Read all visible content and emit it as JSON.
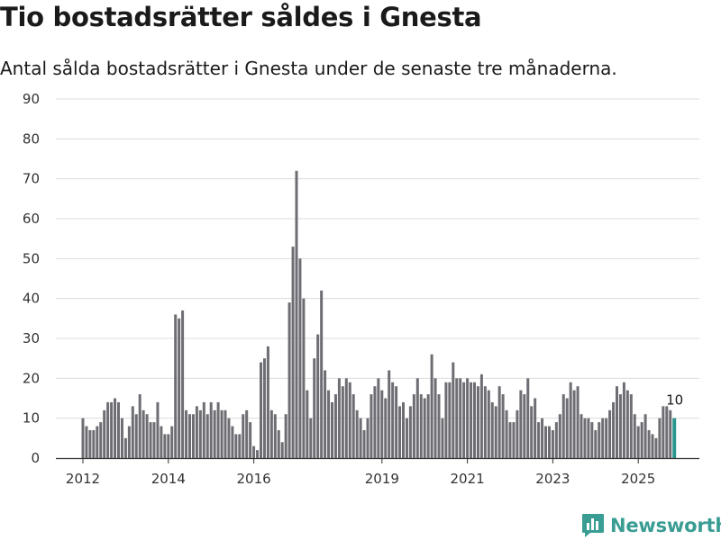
{
  "chart_data": {
    "type": "bar",
    "title": "Tio bostadsrätter såldes i Gnesta",
    "subtitle": "Antal sålda bostadsrätter i Gnesta under de senaste tre månaderna.",
    "xlabel": "",
    "ylabel": "",
    "ylim": [
      0,
      90
    ],
    "yticks": [
      0,
      10,
      20,
      30,
      40,
      50,
      60,
      70,
      80,
      90
    ],
    "xtick_labels": [
      {
        "label": "2012",
        "index": 0
      },
      {
        "label": "2014",
        "index": 24
      },
      {
        "label": "2016",
        "index": 48
      },
      {
        "label": "2019",
        "index": 84
      },
      {
        "label": "2021",
        "index": 108
      },
      {
        "label": "2023",
        "index": 132
      },
      {
        "label": "2025",
        "index": 156
      }
    ],
    "colors": {
      "bar": "#6e6d73",
      "highlight": "#2a958d",
      "grid": "#dcdcdc",
      "axis": "#333333"
    },
    "values": [
      10,
      8,
      7,
      7,
      8,
      9,
      12,
      14,
      14,
      15,
      14,
      10,
      5,
      8,
      13,
      11,
      16,
      12,
      11,
      9,
      9,
      14,
      8,
      6,
      6,
      8,
      36,
      35,
      37,
      12,
      11,
      11,
      13,
      12,
      14,
      11,
      14,
      12,
      14,
      12,
      12,
      10,
      8,
      6,
      6,
      11,
      12,
      9,
      3,
      2,
      24,
      25,
      28,
      12,
      11,
      7,
      4,
      11,
      39,
      53,
      72,
      50,
      40,
      17,
      10,
      25,
      31,
      42,
      22,
      17,
      14,
      16,
      20,
      18,
      20,
      19,
      16,
      12,
      10,
      7,
      10,
      16,
      18,
      20,
      17,
      15,
      22,
      19,
      18,
      13,
      14,
      10,
      13,
      16,
      20,
      16,
      15,
      16,
      26,
      20,
      16,
      10,
      19,
      19,
      24,
      20,
      20,
      19,
      20,
      19,
      19,
      18,
      21,
      18,
      17,
      14,
      13,
      18,
      16,
      12,
      9,
      9,
      12,
      17,
      16,
      20,
      13,
      15,
      9,
      10,
      8,
      8,
      7,
      9,
      11,
      16,
      15,
      19,
      17,
      18,
      11,
      10,
      10,
      9,
      7,
      9,
      10,
      10,
      12,
      14,
      18,
      16,
      19,
      17,
      16,
      11,
      8,
      9,
      11,
      7,
      6,
      5,
      10,
      13,
      13,
      12,
      10
    ],
    "highlight_index": 166,
    "annotation": {
      "text": "10",
      "index": 166
    }
  },
  "branding": {
    "name": "Newsworthy",
    "icon": "bar-chart-icon"
  }
}
